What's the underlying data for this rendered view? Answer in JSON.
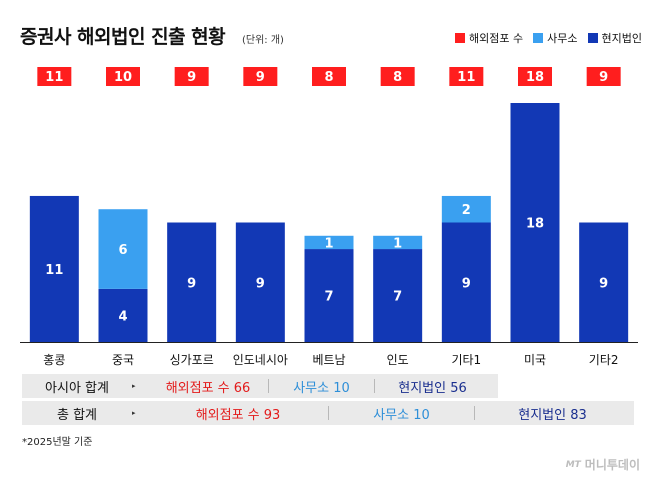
{
  "title": "증권사 해외법인 진출 현황",
  "unit": "(단위: 개)",
  "legend": [
    {
      "label": "해외점포 수",
      "color": "#ff1e1e"
    },
    {
      "label": "사무소",
      "color": "#3aa0f0"
    },
    {
      "label": "현지법인",
      "color": "#1238b5"
    }
  ],
  "chart_data": {
    "type": "bar",
    "stacked": true,
    "categories": [
      "홍콩",
      "중국",
      "싱가포르",
      "인도네시아",
      "베트남",
      "인도",
      "기타1",
      "미국",
      "기타2"
    ],
    "series": [
      {
        "name": "현지법인",
        "color": "#1238b5",
        "values": [
          11,
          4,
          9,
          9,
          7,
          7,
          9,
          18,
          9
        ]
      },
      {
        "name": "사무소",
        "color": "#3aa0f0",
        "values": [
          0,
          6,
          0,
          0,
          1,
          1,
          2,
          0,
          0
        ]
      }
    ],
    "totals": {
      "name": "해외점포 수",
      "color": "#ff1e1e",
      "values": [
        11,
        10,
        9,
        9,
        8,
        8,
        11,
        18,
        9
      ]
    },
    "ylim": [
      0,
      18
    ]
  },
  "summary": {
    "asia": {
      "label": "아시아 합계",
      "arrow": "▸",
      "total": "해외점포 수 66",
      "office": "사무소 10",
      "local": "현지법인 56"
    },
    "all": {
      "label": "총 합계",
      "arrow": "▸",
      "total": "해외점포 수 93",
      "office": "사무소 10",
      "local": "현지법인 83"
    },
    "colors": {
      "total": "#e31b1b",
      "office": "#2e8fd8",
      "local": "#1a2f8f"
    }
  },
  "footnote": "*2025년말 기준",
  "brand": {
    "mark": "MT",
    "name": "머니투데이"
  }
}
